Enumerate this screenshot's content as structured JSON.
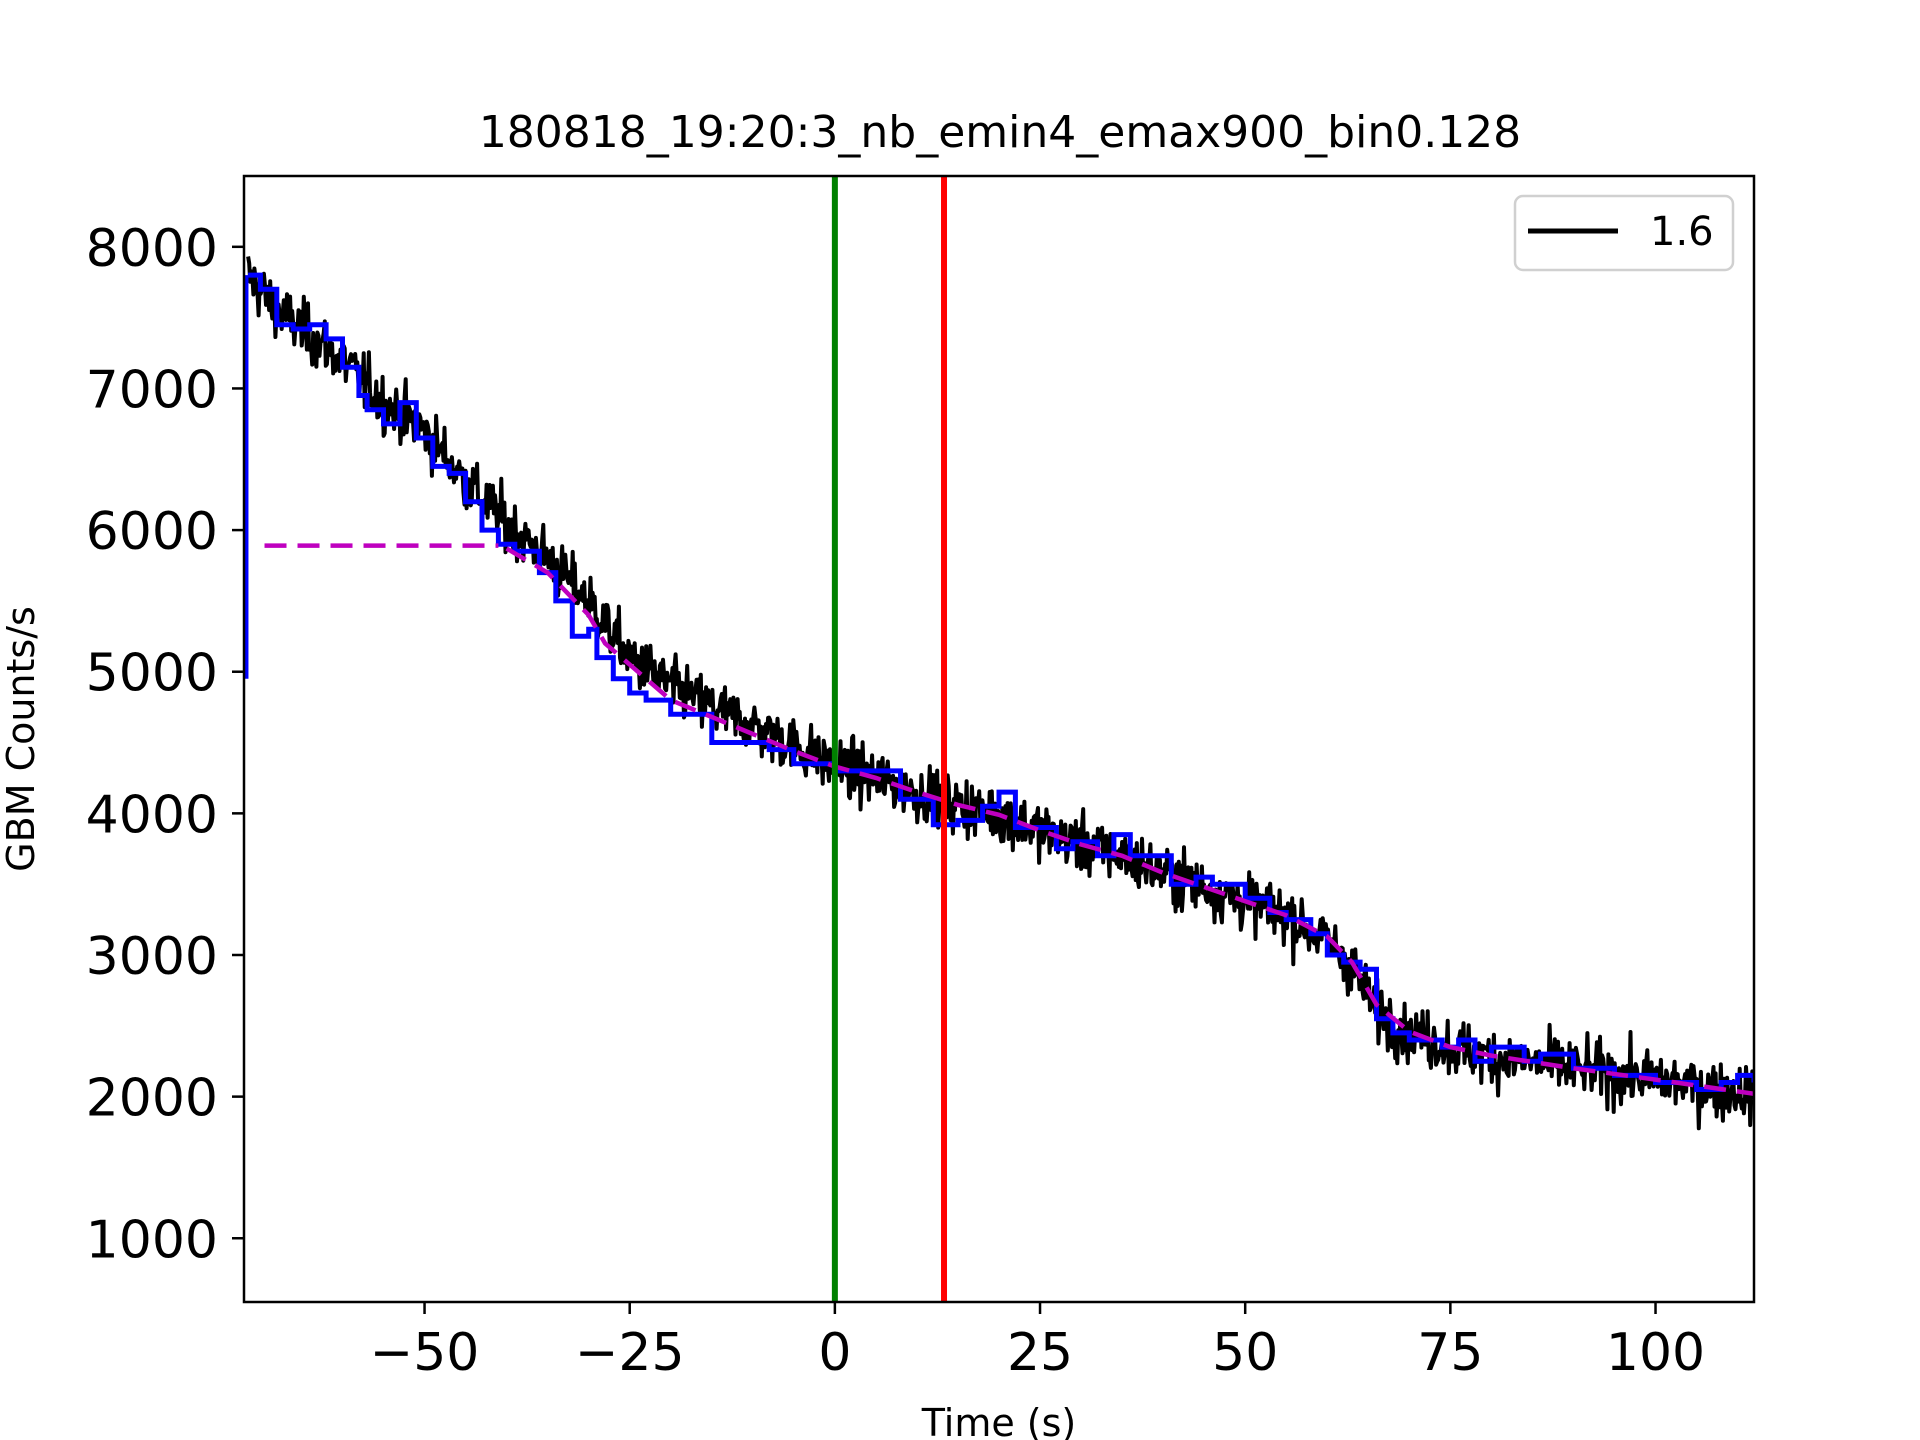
{
  "chart_data": {
    "type": "line",
    "title": "180818_19:20:3_nb_emin4_emax900_bin0.128",
    "xlabel": "Time (s)",
    "ylabel": "GBM Counts/s",
    "xlim": [
      -72,
      112
    ],
    "ylim": [
      550,
      8500
    ],
    "xticks": [
      -50,
      -25,
      0,
      25,
      50,
      75,
      100
    ],
    "xtick_labels": [
      "−50",
      "−25",
      "0",
      "25",
      "50",
      "75",
      "100"
    ],
    "yticks": [
      1000,
      2000,
      3000,
      4000,
      5000,
      6000,
      7000,
      8000
    ],
    "ytick_labels": [
      "1000",
      "2000",
      "3000",
      "4000",
      "5000",
      "6000",
      "7000",
      "8000"
    ],
    "grid": false,
    "legend": {
      "placement": "top-right",
      "entries": [
        {
          "label": "1.6",
          "color": "#000000"
        }
      ]
    },
    "colors": {
      "counts": "#000000",
      "blocks": "#0000ff",
      "background": "#bf00bf",
      "start_line": "#008000",
      "end_line": "#ff0000"
    },
    "trend": {
      "x": [
        -71.5,
        -68,
        -65,
        -60,
        -55,
        -50,
        -45,
        -40,
        -35,
        -30,
        -25,
        -20,
        -15,
        -10,
        -5,
        0,
        5,
        10,
        15,
        20,
        25,
        30,
        35,
        40,
        45,
        50,
        55,
        60,
        63,
        66,
        70,
        75,
        80,
        90,
        100,
        112
      ],
      "y": [
        7800,
        7550,
        7420,
        7200,
        6900,
        6700,
        6350,
        6050,
        5800,
        5500,
        5100,
        4900,
        4750,
        4620,
        4480,
        4330,
        4250,
        4150,
        4060,
        3990,
        3880,
        3780,
        3700,
        3580,
        3480,
        3380,
        3280,
        3100,
        2920,
        2600,
        2450,
        2350,
        2280,
        2200,
        2120,
        2020
      ]
    },
    "noise_amplitude": 180,
    "series": [
      {
        "name": "1.6",
        "style": "step",
        "x": [
          -71.5,
          -70,
          -68,
          -66,
          -64,
          -62,
          -60,
          -58,
          -57,
          -55,
          -53,
          -51,
          -49,
          -47,
          -45,
          -43,
          -41,
          -39,
          -36,
          -34,
          -32,
          -30,
          -29,
          -27,
          -25,
          -23,
          -20,
          -15,
          -13,
          -8,
          -5,
          0,
          3,
          8,
          12,
          15,
          18,
          20,
          22,
          24,
          27,
          29,
          32,
          34,
          36,
          41,
          44,
          46,
          50,
          53,
          55,
          58,
          60,
          62,
          64,
          66,
          68,
          70,
          74,
          76,
          78,
          80,
          84,
          86,
          90,
          95,
          100,
          105,
          108,
          110,
          112
        ],
        "y": [
          7800,
          7700,
          7450,
          7420,
          7450,
          7350,
          7150,
          6950,
          6850,
          6750,
          6900,
          6650,
          6450,
          6400,
          6200,
          6000,
          5900,
          5850,
          5700,
          5500,
          5250,
          5300,
          5100,
          4950,
          4850,
          4800,
          4700,
          4500,
          4500,
          4450,
          4350,
          4300,
          4300,
          4100,
          3920,
          3950,
          4050,
          4150,
          3900,
          3900,
          3750,
          3800,
          3700,
          3850,
          3700,
          3500,
          3550,
          3500,
          3400,
          3300,
          3250,
          3150,
          3000,
          2950,
          2900,
          2550,
          2450,
          2400,
          2350,
          2400,
          2250,
          2350,
          2250,
          2300,
          2200,
          2150,
          2100,
          2050,
          2100,
          2150,
          2100
        ]
      }
    ],
    "background_fit": {
      "flat": {
        "x": [
          -69.5,
          -41
        ],
        "y": 5890
      },
      "curve": {
        "x": [
          -40,
          -35,
          -30,
          -28,
          -25,
          -20,
          -15,
          -10,
          -5,
          0,
          5,
          10,
          15,
          20,
          25,
          30,
          35,
          40,
          45,
          50,
          55,
          60,
          63,
          66,
          70,
          75,
          80,
          90,
          100,
          112
        ],
        "y": [
          5870,
          5700,
          5400,
          5200,
          5050,
          4800,
          4680,
          4560,
          4440,
          4330,
          4250,
          4150,
          4060,
          3990,
          3880,
          3780,
          3700,
          3580,
          3480,
          3380,
          3280,
          3130,
          2950,
          2650,
          2460,
          2350,
          2290,
          2200,
          2120,
          2020
        ]
      }
    },
    "vertical_lines": [
      {
        "x": 0,
        "color": "#008000"
      },
      {
        "x": 13.3,
        "color": "#ff0000"
      }
    ]
  }
}
